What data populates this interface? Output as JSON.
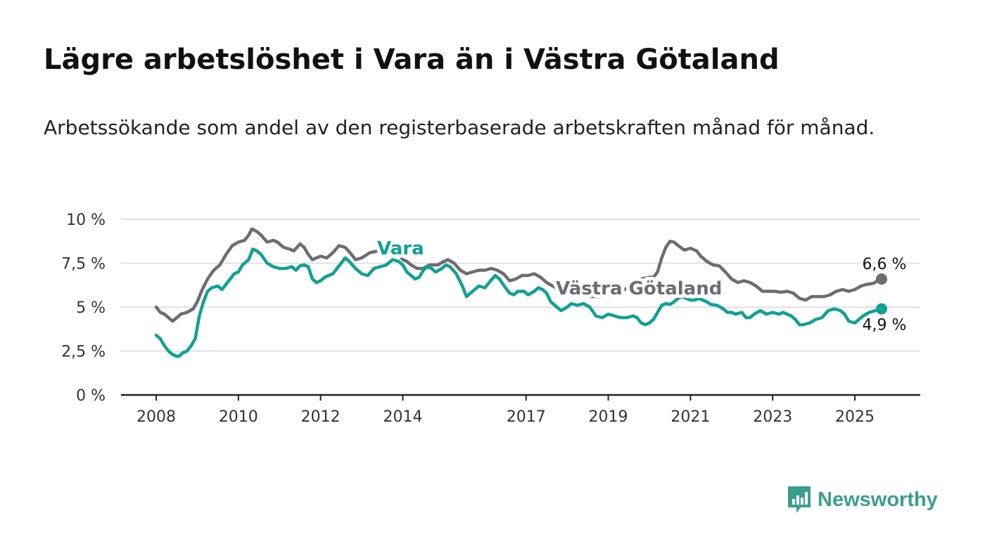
{
  "title": "Lägre arbetslöshet i Vara än i Västra Götaland",
  "subtitle": "Arbetssökande som andel av den registerbaserade arbetskraften månad för månad.",
  "brand": {
    "name": "Newsworthy",
    "color": "#3a9e8f",
    "icon": "bar-chart-speech-bubble-icon"
  },
  "chart_data": {
    "type": "line",
    "ylim": [
      0,
      10
    ],
    "xlim": [
      2008,
      2025.6
    ],
    "grid": true,
    "y_ticks": [
      0,
      2.5,
      5,
      7.5,
      10
    ],
    "y_tick_labels": [
      "0 %",
      "2,5 %",
      "5 %",
      "7,5 %",
      "10 %"
    ],
    "x_ticks": [
      2008,
      2010,
      2012,
      2014,
      2017,
      2019,
      2021,
      2023,
      2025
    ],
    "x_tick_labels": [
      "2008",
      "2010",
      "2012",
      "2014",
      "2017",
      "2019",
      "2021",
      "2023",
      "2025"
    ],
    "series": [
      {
        "name": "Västra Götaland",
        "color": "#6e6b72",
        "end_label": "6,6 %",
        "points": [
          [
            2008.0,
            5.0
          ],
          [
            2008.1,
            4.7
          ],
          [
            2008.2,
            4.6
          ],
          [
            2008.3,
            4.4
          ],
          [
            2008.4,
            4.2
          ],
          [
            2008.5,
            4.4
          ],
          [
            2008.6,
            4.6
          ],
          [
            2008.75,
            4.7
          ],
          [
            2008.9,
            4.9
          ],
          [
            2009.0,
            5.3
          ],
          [
            2009.1,
            5.9
          ],
          [
            2009.25,
            6.6
          ],
          [
            2009.4,
            7.1
          ],
          [
            2009.55,
            7.4
          ],
          [
            2009.7,
            8.0
          ],
          [
            2009.85,
            8.5
          ],
          [
            2010.0,
            8.7
          ],
          [
            2010.15,
            8.8
          ],
          [
            2010.25,
            9.1
          ],
          [
            2010.33,
            9.45
          ],
          [
            2010.45,
            9.3
          ],
          [
            2010.55,
            9.1
          ],
          [
            2010.7,
            8.7
          ],
          [
            2010.85,
            8.8
          ],
          [
            2010.95,
            8.7
          ],
          [
            2011.1,
            8.4
          ],
          [
            2011.25,
            8.3
          ],
          [
            2011.35,
            8.2
          ],
          [
            2011.5,
            8.6
          ],
          [
            2011.6,
            8.4
          ],
          [
            2011.7,
            8.0
          ],
          [
            2011.8,
            7.7
          ],
          [
            2011.9,
            7.8
          ],
          [
            2012.0,
            7.9
          ],
          [
            2012.15,
            7.8
          ],
          [
            2012.3,
            8.1
          ],
          [
            2012.45,
            8.5
          ],
          [
            2012.6,
            8.4
          ],
          [
            2012.75,
            8.0
          ],
          [
            2012.85,
            7.7
          ],
          [
            2013.0,
            7.8
          ],
          [
            2013.2,
            8.1
          ],
          [
            2013.4,
            8.2
          ],
          [
            2013.55,
            8.5
          ],
          [
            2013.7,
            8.4
          ],
          [
            2013.9,
            8.0
          ],
          [
            2014.0,
            7.7
          ],
          [
            2014.1,
            7.6
          ],
          [
            2014.2,
            7.4
          ],
          [
            2014.35,
            7.2
          ],
          [
            2014.5,
            7.2
          ],
          [
            2014.65,
            7.4
          ],
          [
            2014.85,
            7.4
          ],
          [
            2015.0,
            7.6
          ],
          [
            2015.1,
            7.7
          ],
          [
            2015.25,
            7.5
          ],
          [
            2015.4,
            7.1
          ],
          [
            2015.55,
            6.9
          ],
          [
            2015.7,
            7.0
          ],
          [
            2015.85,
            7.1
          ],
          [
            2016.0,
            7.1
          ],
          [
            2016.15,
            7.2
          ],
          [
            2016.3,
            7.1
          ],
          [
            2016.45,
            6.9
          ],
          [
            2016.6,
            6.5
          ],
          [
            2016.75,
            6.6
          ],
          [
            2016.9,
            6.8
          ],
          [
            2017.05,
            6.8
          ],
          [
            2017.2,
            6.9
          ],
          [
            2017.35,
            6.7
          ],
          [
            2017.5,
            6.4
          ],
          [
            2017.65,
            6.2
          ],
          [
            2017.8,
            6.0
          ],
          [
            2018.0,
            5.9
          ],
          [
            2018.2,
            5.8
          ],
          [
            2018.4,
            5.7
          ],
          [
            2018.6,
            5.6
          ],
          [
            2018.8,
            5.6
          ],
          [
            2019.0,
            5.7
          ],
          [
            2019.2,
            5.8
          ],
          [
            2019.4,
            6.0
          ],
          [
            2019.6,
            6.3
          ],
          [
            2019.8,
            6.6
          ],
          [
            2020.0,
            6.7
          ],
          [
            2020.1,
            6.7
          ],
          [
            2020.2,
            7.0
          ],
          [
            2020.3,
            7.8
          ],
          [
            2020.4,
            8.4
          ],
          [
            2020.5,
            8.75
          ],
          [
            2020.6,
            8.7
          ],
          [
            2020.7,
            8.5
          ],
          [
            2020.85,
            8.25
          ],
          [
            2021.0,
            8.35
          ],
          [
            2021.15,
            8.2
          ],
          [
            2021.25,
            7.9
          ],
          [
            2021.4,
            7.6
          ],
          [
            2021.55,
            7.4
          ],
          [
            2021.7,
            7.35
          ],
          [
            2021.85,
            7.0
          ],
          [
            2022.0,
            6.6
          ],
          [
            2022.15,
            6.4
          ],
          [
            2022.3,
            6.5
          ],
          [
            2022.45,
            6.4
          ],
          [
            2022.6,
            6.2
          ],
          [
            2022.75,
            5.9
          ],
          [
            2022.9,
            5.9
          ],
          [
            2023.05,
            5.9
          ],
          [
            2023.2,
            5.85
          ],
          [
            2023.35,
            5.9
          ],
          [
            2023.5,
            5.8
          ],
          [
            2023.65,
            5.5
          ],
          [
            2023.8,
            5.4
          ],
          [
            2023.95,
            5.6
          ],
          [
            2024.1,
            5.6
          ],
          [
            2024.25,
            5.6
          ],
          [
            2024.4,
            5.7
          ],
          [
            2024.55,
            5.9
          ],
          [
            2024.7,
            6.0
          ],
          [
            2024.85,
            5.9
          ],
          [
            2025.0,
            6.0
          ],
          [
            2025.15,
            6.2
          ],
          [
            2025.3,
            6.3
          ],
          [
            2025.45,
            6.35
          ],
          [
            2025.55,
            6.5
          ],
          [
            2025.65,
            6.6
          ]
        ]
      },
      {
        "name": "Vara",
        "color": "#0fa194",
        "end_label": "4,9 %",
        "points": [
          [
            2008.0,
            3.4
          ],
          [
            2008.1,
            3.2
          ],
          [
            2008.2,
            2.8
          ],
          [
            2008.3,
            2.5
          ],
          [
            2008.4,
            2.3
          ],
          [
            2008.5,
            2.2
          ],
          [
            2008.55,
            2.2
          ],
          [
            2008.65,
            2.4
          ],
          [
            2008.75,
            2.5
          ],
          [
            2008.85,
            2.8
          ],
          [
            2008.95,
            3.2
          ],
          [
            2009.05,
            4.5
          ],
          [
            2009.15,
            5.3
          ],
          [
            2009.25,
            5.9
          ],
          [
            2009.35,
            6.1
          ],
          [
            2009.5,
            6.2
          ],
          [
            2009.6,
            6.0
          ],
          [
            2009.7,
            6.3
          ],
          [
            2009.8,
            6.6
          ],
          [
            2009.9,
            6.9
          ],
          [
            2010.0,
            7.0
          ],
          [
            2010.1,
            7.4
          ],
          [
            2010.25,
            7.7
          ],
          [
            2010.35,
            8.3
          ],
          [
            2010.45,
            8.2
          ],
          [
            2010.55,
            8.0
          ],
          [
            2010.7,
            7.5
          ],
          [
            2010.85,
            7.3
          ],
          [
            2011.0,
            7.2
          ],
          [
            2011.15,
            7.2
          ],
          [
            2011.3,
            7.3
          ],
          [
            2011.4,
            7.1
          ],
          [
            2011.5,
            7.35
          ],
          [
            2011.6,
            7.4
          ],
          [
            2011.7,
            7.3
          ],
          [
            2011.8,
            6.6
          ],
          [
            2011.9,
            6.4
          ],
          [
            2012.0,
            6.5
          ],
          [
            2012.1,
            6.7
          ],
          [
            2012.2,
            6.8
          ],
          [
            2012.3,
            6.9
          ],
          [
            2012.4,
            7.2
          ],
          [
            2012.5,
            7.5
          ],
          [
            2012.6,
            7.8
          ],
          [
            2012.7,
            7.6
          ],
          [
            2012.85,
            7.2
          ],
          [
            2013.0,
            6.9
          ],
          [
            2013.15,
            6.8
          ],
          [
            2013.3,
            7.2
          ],
          [
            2013.45,
            7.3
          ],
          [
            2013.6,
            7.4
          ],
          [
            2013.75,
            7.7
          ],
          [
            2013.9,
            7.6
          ],
          [
            2014.0,
            7.4
          ],
          [
            2014.1,
            7.0
          ],
          [
            2014.2,
            6.8
          ],
          [
            2014.3,
            6.6
          ],
          [
            2014.4,
            6.7
          ],
          [
            2014.5,
            7.1
          ],
          [
            2014.6,
            7.3
          ],
          [
            2014.7,
            7.2
          ],
          [
            2014.8,
            7.0
          ],
          [
            2014.95,
            7.2
          ],
          [
            2015.05,
            7.4
          ],
          [
            2015.15,
            7.3
          ],
          [
            2015.3,
            6.9
          ],
          [
            2015.45,
            6.2
          ],
          [
            2015.55,
            5.6
          ],
          [
            2015.7,
            5.9
          ],
          [
            2015.85,
            6.2
          ],
          [
            2016.0,
            6.1
          ],
          [
            2016.1,
            6.4
          ],
          [
            2016.25,
            6.8
          ],
          [
            2016.35,
            6.6
          ],
          [
            2016.5,
            6.1
          ],
          [
            2016.6,
            5.8
          ],
          [
            2016.7,
            5.7
          ],
          [
            2016.8,
            5.9
          ],
          [
            2016.95,
            5.9
          ],
          [
            2017.05,
            5.7
          ],
          [
            2017.2,
            5.9
          ],
          [
            2017.3,
            6.1
          ],
          [
            2017.4,
            6.0
          ],
          [
            2017.5,
            5.8
          ],
          [
            2017.6,
            5.3
          ],
          [
            2017.75,
            5.0
          ],
          [
            2017.85,
            4.8
          ],
          [
            2018.0,
            5.0
          ],
          [
            2018.1,
            5.2
          ],
          [
            2018.25,
            5.1
          ],
          [
            2018.4,
            5.2
          ],
          [
            2018.55,
            5.0
          ],
          [
            2018.7,
            4.5
          ],
          [
            2018.85,
            4.4
          ],
          [
            2019.0,
            4.6
          ],
          [
            2019.15,
            4.5
          ],
          [
            2019.3,
            4.4
          ],
          [
            2019.45,
            4.4
          ],
          [
            2019.6,
            4.5
          ],
          [
            2019.7,
            4.4
          ],
          [
            2019.8,
            4.1
          ],
          [
            2019.9,
            4.0
          ],
          [
            2020.0,
            4.1
          ],
          [
            2020.1,
            4.3
          ],
          [
            2020.2,
            4.7
          ],
          [
            2020.3,
            5.1
          ],
          [
            2020.4,
            5.2
          ],
          [
            2020.5,
            5.15
          ],
          [
            2020.6,
            5.3
          ],
          [
            2020.7,
            5.5
          ],
          [
            2020.8,
            5.6
          ],
          [
            2020.9,
            5.5
          ],
          [
            2021.0,
            5.4
          ],
          [
            2021.1,
            5.4
          ],
          [
            2021.2,
            5.5
          ],
          [
            2021.3,
            5.4
          ],
          [
            2021.4,
            5.3
          ],
          [
            2021.5,
            5.15
          ],
          [
            2021.65,
            5.1
          ],
          [
            2021.8,
            4.9
          ],
          [
            2021.9,
            4.7
          ],
          [
            2022.0,
            4.7
          ],
          [
            2022.1,
            4.6
          ],
          [
            2022.25,
            4.7
          ],
          [
            2022.35,
            4.4
          ],
          [
            2022.45,
            4.4
          ],
          [
            2022.55,
            4.6
          ],
          [
            2022.7,
            4.8
          ],
          [
            2022.85,
            4.6
          ],
          [
            2023.0,
            4.7
          ],
          [
            2023.15,
            4.6
          ],
          [
            2023.25,
            4.7
          ],
          [
            2023.35,
            4.6
          ],
          [
            2023.45,
            4.5
          ],
          [
            2023.55,
            4.3
          ],
          [
            2023.65,
            4.0
          ],
          [
            2023.75,
            4.0
          ],
          [
            2023.9,
            4.1
          ],
          [
            2024.05,
            4.3
          ],
          [
            2024.2,
            4.4
          ],
          [
            2024.35,
            4.8
          ],
          [
            2024.5,
            4.9
          ],
          [
            2024.65,
            4.8
          ],
          [
            2024.75,
            4.6
          ],
          [
            2024.85,
            4.2
          ],
          [
            2025.0,
            4.1
          ],
          [
            2025.1,
            4.3
          ],
          [
            2025.2,
            4.5
          ],
          [
            2025.35,
            4.7
          ],
          [
            2025.5,
            4.8
          ],
          [
            2025.65,
            4.9
          ]
        ]
      }
    ]
  }
}
